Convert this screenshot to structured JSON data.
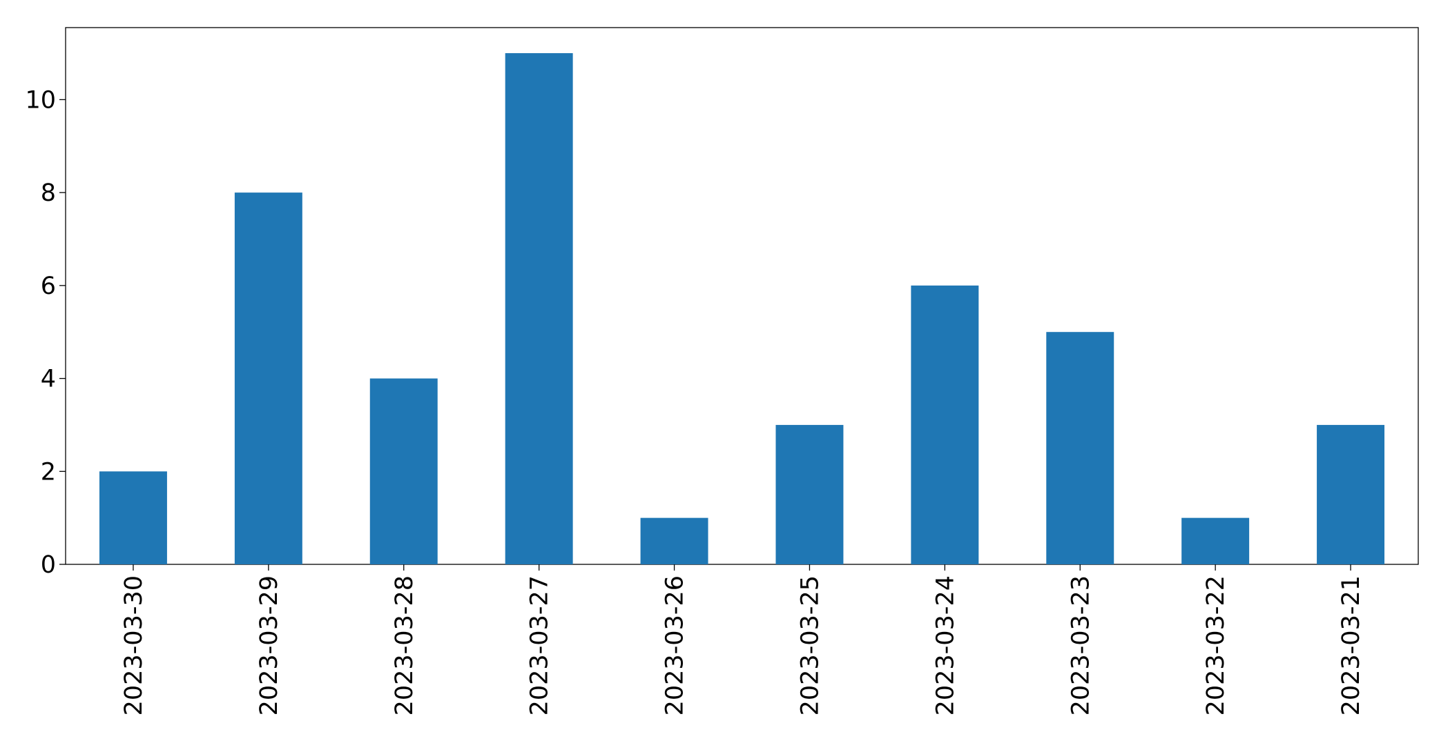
{
  "chart_data": {
    "type": "bar",
    "categories": [
      "2023-03-30",
      "2023-03-29",
      "2023-03-28",
      "2023-03-27",
      "2023-03-26",
      "2023-03-25",
      "2023-03-24",
      "2023-03-23",
      "2023-03-22",
      "2023-03-21"
    ],
    "values": [
      2,
      8,
      4,
      11,
      1,
      3,
      6,
      5,
      1,
      3
    ],
    "color": "#1f77b4",
    "ylim": [
      0,
      11.55
    ],
    "yticks": [
      0,
      2,
      4,
      6,
      8,
      10
    ],
    "grid": false
  }
}
